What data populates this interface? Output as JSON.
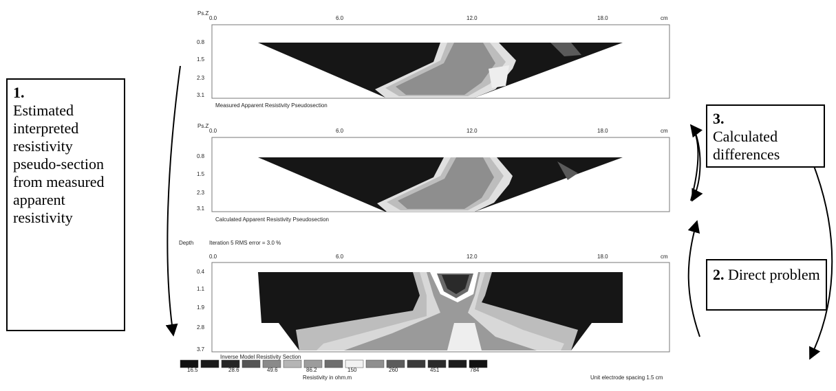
{
  "boxes": {
    "box1": {
      "num": "1.",
      "text": "Estimated interpreted resistivity pseudo-section from measured apparent resistivity"
    },
    "box2": {
      "num": "2.",
      "text": "Direct problem"
    },
    "box3": {
      "num": "3.",
      "text": "Calculated differences"
    }
  },
  "panels": [
    {
      "id": "measured",
      "axis_label": "Ps.Z",
      "x_ticks": [
        "0.0",
        "6.0",
        "12.0",
        "18.0"
      ],
      "x_unit": "cm",
      "depth_ticks": [
        "0.8",
        "1.5",
        "2.3",
        "3.1"
      ],
      "caption": "Measured Apparent Resistivity Pseudosection"
    },
    {
      "id": "calculated",
      "axis_label": "Ps.Z",
      "x_ticks": [
        "0.0",
        "6.0",
        "12.0",
        "18.0"
      ],
      "x_unit": "cm",
      "depth_ticks": [
        "0.8",
        "1.5",
        "2.3",
        "3.1"
      ],
      "caption": "Calculated Apparent Resistivity Pseudosection"
    },
    {
      "id": "inverse",
      "axis_label": "Depth",
      "subtitle": "Iteration 5 RMS error = 3.0 %",
      "x_ticks": [
        "0.0",
        "6.0",
        "12.0",
        "18.0"
      ],
      "x_unit": "cm",
      "depth_ticks": [
        "0.4",
        "1.1",
        "1.9",
        "2.8",
        "3.7"
      ],
      "caption": "Inverse Model Resistivity Section"
    }
  ],
  "legend": {
    "values": [
      "16.5",
      "28.6",
      "49.6",
      "86.2",
      "150",
      "260",
      "451",
      "784"
    ],
    "colors": [
      "#111111",
      "#1a1a1a",
      "#262626",
      "#555555",
      "#8a8a8a",
      "#b5b5b5",
      "#9c9c9c",
      "#6e6e6e",
      "#f2f2f2",
      "#8f8f8f",
      "#5c5c5c",
      "#3a3a3a",
      "#2a2a2a",
      "#1c1c1c",
      "#121212"
    ],
    "unit_label": "Resistivity in ohm.m",
    "spacing_note": "Unit electrode spacing 1.5 cm"
  }
}
